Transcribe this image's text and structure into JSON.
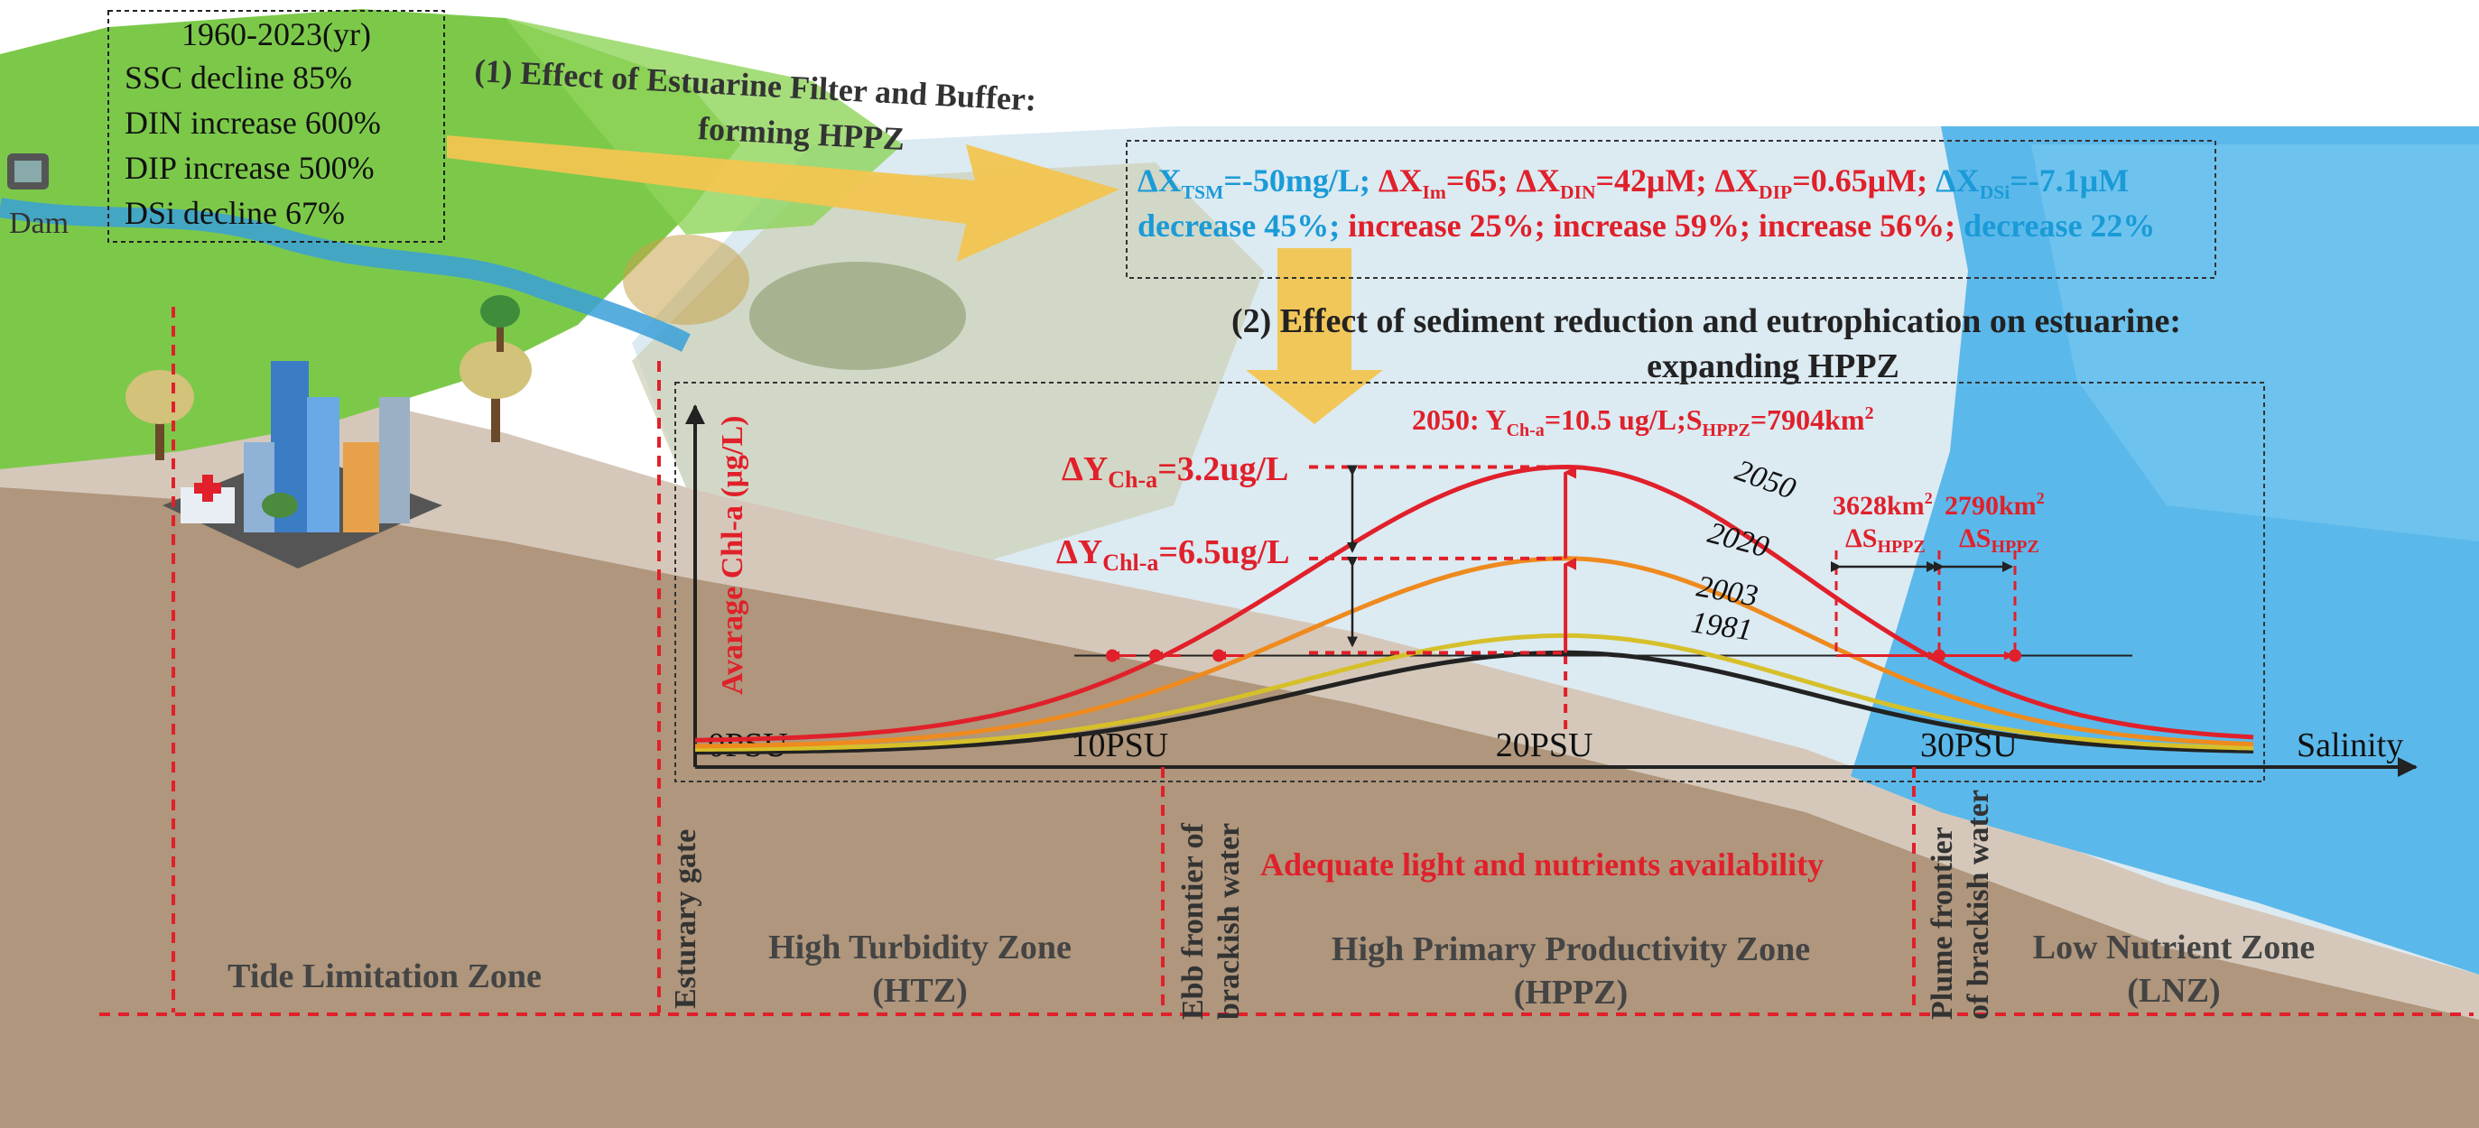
{
  "left_box": {
    "lines": [
      "1960-2023(yr)",
      "SSC decline 85%",
      "DIN increase 600%",
      "DIP increase 500%",
      "DSi decline 67%"
    ]
  },
  "dam_label": "Dam",
  "effect1": {
    "title_line1": "(1) Effect of Estuarine Filter and Buffer:",
    "title_line2": "forming HPPZ"
  },
  "delta_box": {
    "line1": [
      {
        "base": "ΔX",
        "sub": "TSM",
        "rest": "=-50mg/L; ",
        "color": "#1a9bd7"
      },
      {
        "base": "ΔX",
        "sub": "Im",
        "rest": "=65;  ",
        "color": "#e0202a"
      },
      {
        "base": "ΔX",
        "sub": "DIN",
        "rest": "=42μM; ",
        "color": "#e0202a"
      },
      {
        "base": "ΔX",
        "sub": "DIP",
        "rest": "=0.65μM; ",
        "color": "#e0202a"
      },
      {
        "base": "ΔX",
        "sub": "DSi",
        "rest": "=-7.1μM",
        "color": "#1a9bd7"
      }
    ],
    "line2": [
      {
        "text": "decrease 45%; ",
        "color": "#1a9bd7"
      },
      {
        "text": "increase 25%; ",
        "color": "#e0202a"
      },
      {
        "text": "increase 59%; ",
        "color": "#e0202a"
      },
      {
        "text": "increase 56%; ",
        "color": "#e0202a"
      },
      {
        "text": "decrease 22%",
        "color": "#1a9bd7"
      }
    ]
  },
  "effect2": {
    "title_line1": "(2) Effect of sediment reduction and eutrophication on estuarine:",
    "title_line2": "expanding HPPZ"
  },
  "chart_annotations": {
    "y2050": {
      "prefix": "2050: Y",
      "sub1": "Ch-a",
      "mid": "=10.5 ug/L;S",
      "sub2": "HPPZ",
      "suffix": "=7904km",
      "sup": "2"
    },
    "dy1": {
      "prefix": "ΔY",
      "sub": "Ch-a",
      "suffix": "=3.2ug/L"
    },
    "dy2": {
      "prefix": "ΔY",
      "sub": "Chl-a",
      "suffix": "=6.5ug/L"
    },
    "area1": {
      "value": "3628km",
      "sup": "2",
      "label": "ΔS",
      "sub": "HPPZ"
    },
    "area2": {
      "value": "2790km",
      "sup": "2",
      "label": "ΔS",
      "sub": "HPPZ"
    }
  },
  "chart_data": {
    "type": "line",
    "title": "",
    "xlabel": "Salinity",
    "ylabel": "Avarage Chl-a (μg/L)",
    "x_tick_labels": [
      "0PSU",
      "10PSU",
      "20PSU",
      "30PSU"
    ],
    "x_ticks": [
      0,
      10,
      20,
      30
    ],
    "xlim": [
      0,
      36.7
    ],
    "ylim": [
      0,
      12
    ],
    "series": [
      {
        "name": "2050",
        "color": "#e0202a",
        "peak": 10.5,
        "base": 0.9,
        "x": [
          0,
          2,
          4,
          6,
          8,
          10,
          12,
          14,
          16,
          18,
          20,
          22,
          24,
          26,
          28,
          30,
          32,
          34,
          36.7
        ]
      },
      {
        "name": "2020",
        "color": "#ee8a1e",
        "peak": 7.3,
        "base": 0.7
      },
      {
        "name": "2003",
        "color": "#d6c02a",
        "peak": 4.6,
        "base": 0.6
      },
      {
        "name": "1981",
        "color": "#222222",
        "peak": 4.0,
        "base": 0.5
      }
    ],
    "threshold_label": "",
    "peak_salinity": 20.5
  },
  "inside_label": "Adequate light and nutrients availability",
  "vertical_labels": {
    "gate": "Esturary gate",
    "ebb_1": "Ebb frontier of",
    "ebb_2": "brackish water",
    "plume_1": "Plume frontier",
    "plume_2": "of brackish water"
  },
  "zones": {
    "tide": "Tide Limitation Zone",
    "htz_1": "High Turbidity Zone",
    "htz_2": "(HTZ)",
    "hppz_1": "High Primary Productivity Zone",
    "hppz_2": "(HPPZ)",
    "lnz_1": "Low Nutrient Zone",
    "lnz_2": "(LNZ)"
  },
  "colors": {
    "red": "#e0202a",
    "blue_text": "#1a9bd7",
    "land_green": "#7cc94a",
    "sea": "#5bb8ea",
    "soil": "#a78b70",
    "arrow": "#f2c550"
  }
}
